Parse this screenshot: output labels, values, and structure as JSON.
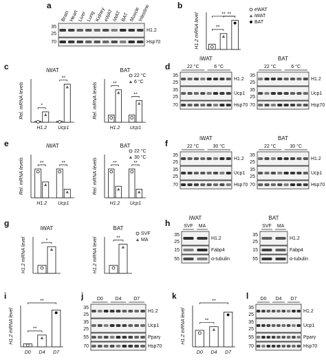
{
  "chart_data": [
    {
      "type": "bar",
      "panel": "b",
      "ylabel": "H1.2 mRNA level",
      "categories": [
        "eWAT",
        "iWAT",
        "BAT"
      ],
      "values": [
        1,
        3,
        5.5
      ],
      "color": "#ffffff",
      "ylim": [
        0,
        7
      ],
      "category_legend": true,
      "annotations": [
        "**",
        "**",
        "**"
      ]
    },
    {
      "type": "bar",
      "panel": "c",
      "title": "iWAT",
      "ylabel": "Rel. mRNA levels",
      "categories": [
        "H1.2",
        "Ucp1"
      ],
      "series": [
        {
          "name": "22 °C",
          "color": "#ffffff",
          "values": [
            1,
            1
          ]
        },
        {
          "name": "6 °C",
          "color": "#ffffff",
          "values": [
            12,
            44
          ]
        }
      ],
      "ylim": [
        0,
        50
      ],
      "legend": false,
      "annotations": [
        "*",
        "**"
      ]
    },
    {
      "type": "bar",
      "title": "BAT",
      "ylabel": "Rel. mRNA levels",
      "categories": [
        "H1.2",
        "Ucp1"
      ],
      "series": [
        {
          "name": "22 °C",
          "color": "#ffffff",
          "values": [
            1,
            1
          ]
        },
        {
          "name": "6 °C",
          "color": "#ffffff",
          "values": [
            4.5,
            3
          ]
        }
      ],
      "ylim": [
        0,
        6
      ],
      "legend": true,
      "annotations": [
        "**",
        "**"
      ]
    },
    {
      "type": "bar",
      "panel": "e",
      "title": "iWAT",
      "ylabel": "Rel. mRNA levels",
      "categories": [
        "H1.2",
        "Ucp1"
      ],
      "series": [
        {
          "name": "22 °C",
          "color": "#ffffff",
          "values": [
            1,
            1
          ]
        },
        {
          "name": "30 °C",
          "color": "#ffffff",
          "values": [
            0.55,
            0.3
          ]
        }
      ],
      "ylim": [
        0,
        1.5
      ],
      "legend": false,
      "annotations": [
        "**",
        "**"
      ]
    },
    {
      "type": "bar",
      "title": "BAT",
      "ylabel": "Rel. mRNA levels",
      "categories": [
        "H1.2",
        "Ucp1"
      ],
      "series": [
        {
          "name": "22 °C",
          "color": "#ffffff",
          "values": [
            1,
            1
          ]
        },
        {
          "name": "30 °C",
          "color": "#ffffff",
          "values": [
            0.4,
            0.3
          ]
        }
      ],
      "ylim": [
        0,
        1.5
      ],
      "legend": true,
      "annotations": [
        "**",
        "**"
      ]
    },
    {
      "type": "bar",
      "panel": "g",
      "title": "iWAT",
      "ylabel": "H1.2 mRNA level",
      "categories": [
        null
      ],
      "series": [
        {
          "name": "SVF",
          "color": "#ffffff",
          "values": [
            1
          ]
        },
        {
          "name": "MA",
          "color": "#ffffff",
          "values": [
            3.3
          ]
        }
      ],
      "ylim": [
        0,
        4.5
      ],
      "legend": false,
      "annotations": [
        "*"
      ]
    },
    {
      "type": "bar",
      "title": "BAT",
      "ylabel": "H1.2 mRNA level",
      "categories": [
        null
      ],
      "series": [
        {
          "name": "SVF",
          "color": "#ffffff",
          "values": [
            1
          ]
        },
        {
          "name": "MA",
          "color": "#ffffff",
          "values": [
            3.6
          ]
        }
      ],
      "ylim": [
        0,
        4.5
      ],
      "legend": true,
      "annotations": [
        "**"
      ]
    },
    {
      "type": "bar",
      "panel": "i",
      "ylabel": "H1.2 mRNA level",
      "categories": [
        "D0",
        "D4",
        "D7"
      ],
      "values": [
        1,
        4,
        12.5
      ],
      "color": "#ffffff",
      "ylim": [
        0,
        14
      ],
      "annotations": [
        "**",
        "**"
      ]
    },
    {
      "type": "bar",
      "panel": "k",
      "ylabel": "H1.2 mRNA level",
      "categories": [
        "D0",
        "D4",
        "D7"
      ],
      "values": [
        1.8,
        2.2,
        3.8
      ],
      "color": "#ffffff",
      "ylim": [
        0,
        4.5
      ],
      "annotations": [
        "**",
        "**"
      ]
    }
  ],
  "blots": [
    {
      "panel": "a",
      "lanes": [
        "Brain",
        "Heart",
        "Liver",
        "Lung",
        "Kidney",
        "eWAT",
        "iWAT",
        "BAT",
        "Muscle",
        "Intestine"
      ],
      "rows": [
        {
          "label": "H1.2",
          "markers": [
            35,
            25
          ]
        },
        {
          "label": "Hsp70",
          "markers": [
            70
          ]
        }
      ]
    },
    {
      "panel": "d",
      "title": "iWAT",
      "groups": [
        "22 °C",
        "6 °C"
      ],
      "rows": [
        {
          "label": "H1.2",
          "markers": [
            35,
            25
          ]
        },
        {
          "label": "Ucp1",
          "markers": [
            35,
            25
          ]
        },
        {
          "label": "Hsp70",
          "markers": [
            70
          ]
        }
      ]
    },
    {
      "title": "BAT",
      "groups": [
        "22 °C",
        "6 °C"
      ],
      "rows": [
        {
          "label": "H1.2",
          "markers": [
            35,
            25
          ]
        },
        {
          "label": "Ucp1",
          "markers": [
            35,
            25
          ]
        },
        {
          "label": "Hsp70",
          "markers": [
            70
          ]
        }
      ]
    },
    {
      "panel": "f",
      "title": "iWAT",
      "groups": [
        "22 °C",
        "30 °C"
      ],
      "rows": [
        {
          "label": "H1.2",
          "markers": [
            35,
            25
          ]
        },
        {
          "label": "Ucp1",
          "markers": [
            35,
            25
          ]
        },
        {
          "label": "Hsp70",
          "markers": [
            70
          ]
        }
      ]
    },
    {
      "title": "BAT",
      "groups": [
        "22 °C",
        "30 °C"
      ],
      "rows": [
        {
          "label": "H1.2",
          "markers": [
            35,
            25
          ]
        },
        {
          "label": "Ucp1",
          "markers": [
            35,
            25
          ]
        },
        {
          "label": "Hsp70",
          "markers": [
            70
          ]
        }
      ]
    },
    {
      "panel": "h",
      "title": "iWAT",
      "groups": [
        "SVF",
        "MA"
      ],
      "rows": [
        {
          "label": "H1.2",
          "markers": [
            35,
            25
          ]
        },
        {
          "label": "Fabp4",
          "markers": [
            15
          ]
        },
        {
          "label": "α-tubulin",
          "markers": [
            55
          ]
        }
      ]
    },
    {
      "title": "BAT",
      "groups": [
        "SVF",
        "MA"
      ],
      "rows": [
        {
          "label": "H1.2",
          "markers": [
            35,
            25
          ]
        },
        {
          "label": "Fabp4",
          "markers": [
            15
          ]
        },
        {
          "label": "α-tubulin",
          "markers": [
            55
          ]
        }
      ]
    },
    {
      "panel": "j",
      "groups": [
        "D0",
        "D4",
        "D7"
      ],
      "rows": [
        {
          "label": "H1.2",
          "markers": [
            35,
            25
          ]
        },
        {
          "label": "Ucp1",
          "markers": [
            35,
            25
          ]
        },
        {
          "label": "Pparγ",
          "markers": [
            55
          ]
        },
        {
          "label": "Hsp70",
          "markers": [
            70
          ]
        }
      ]
    },
    {
      "panel": "l",
      "groups": [
        "D0",
        "D4",
        "D7"
      ],
      "rows": [
        {
          "label": "H1.2",
          "markers": [
            35,
            25
          ]
        },
        {
          "label": "Ucp1",
          "markers": [
            35,
            25
          ]
        },
        {
          "label": "Pparγ",
          "markers": [
            55
          ]
        },
        {
          "label": "Hsp70",
          "markers": [
            70
          ]
        }
      ]
    }
  ]
}
